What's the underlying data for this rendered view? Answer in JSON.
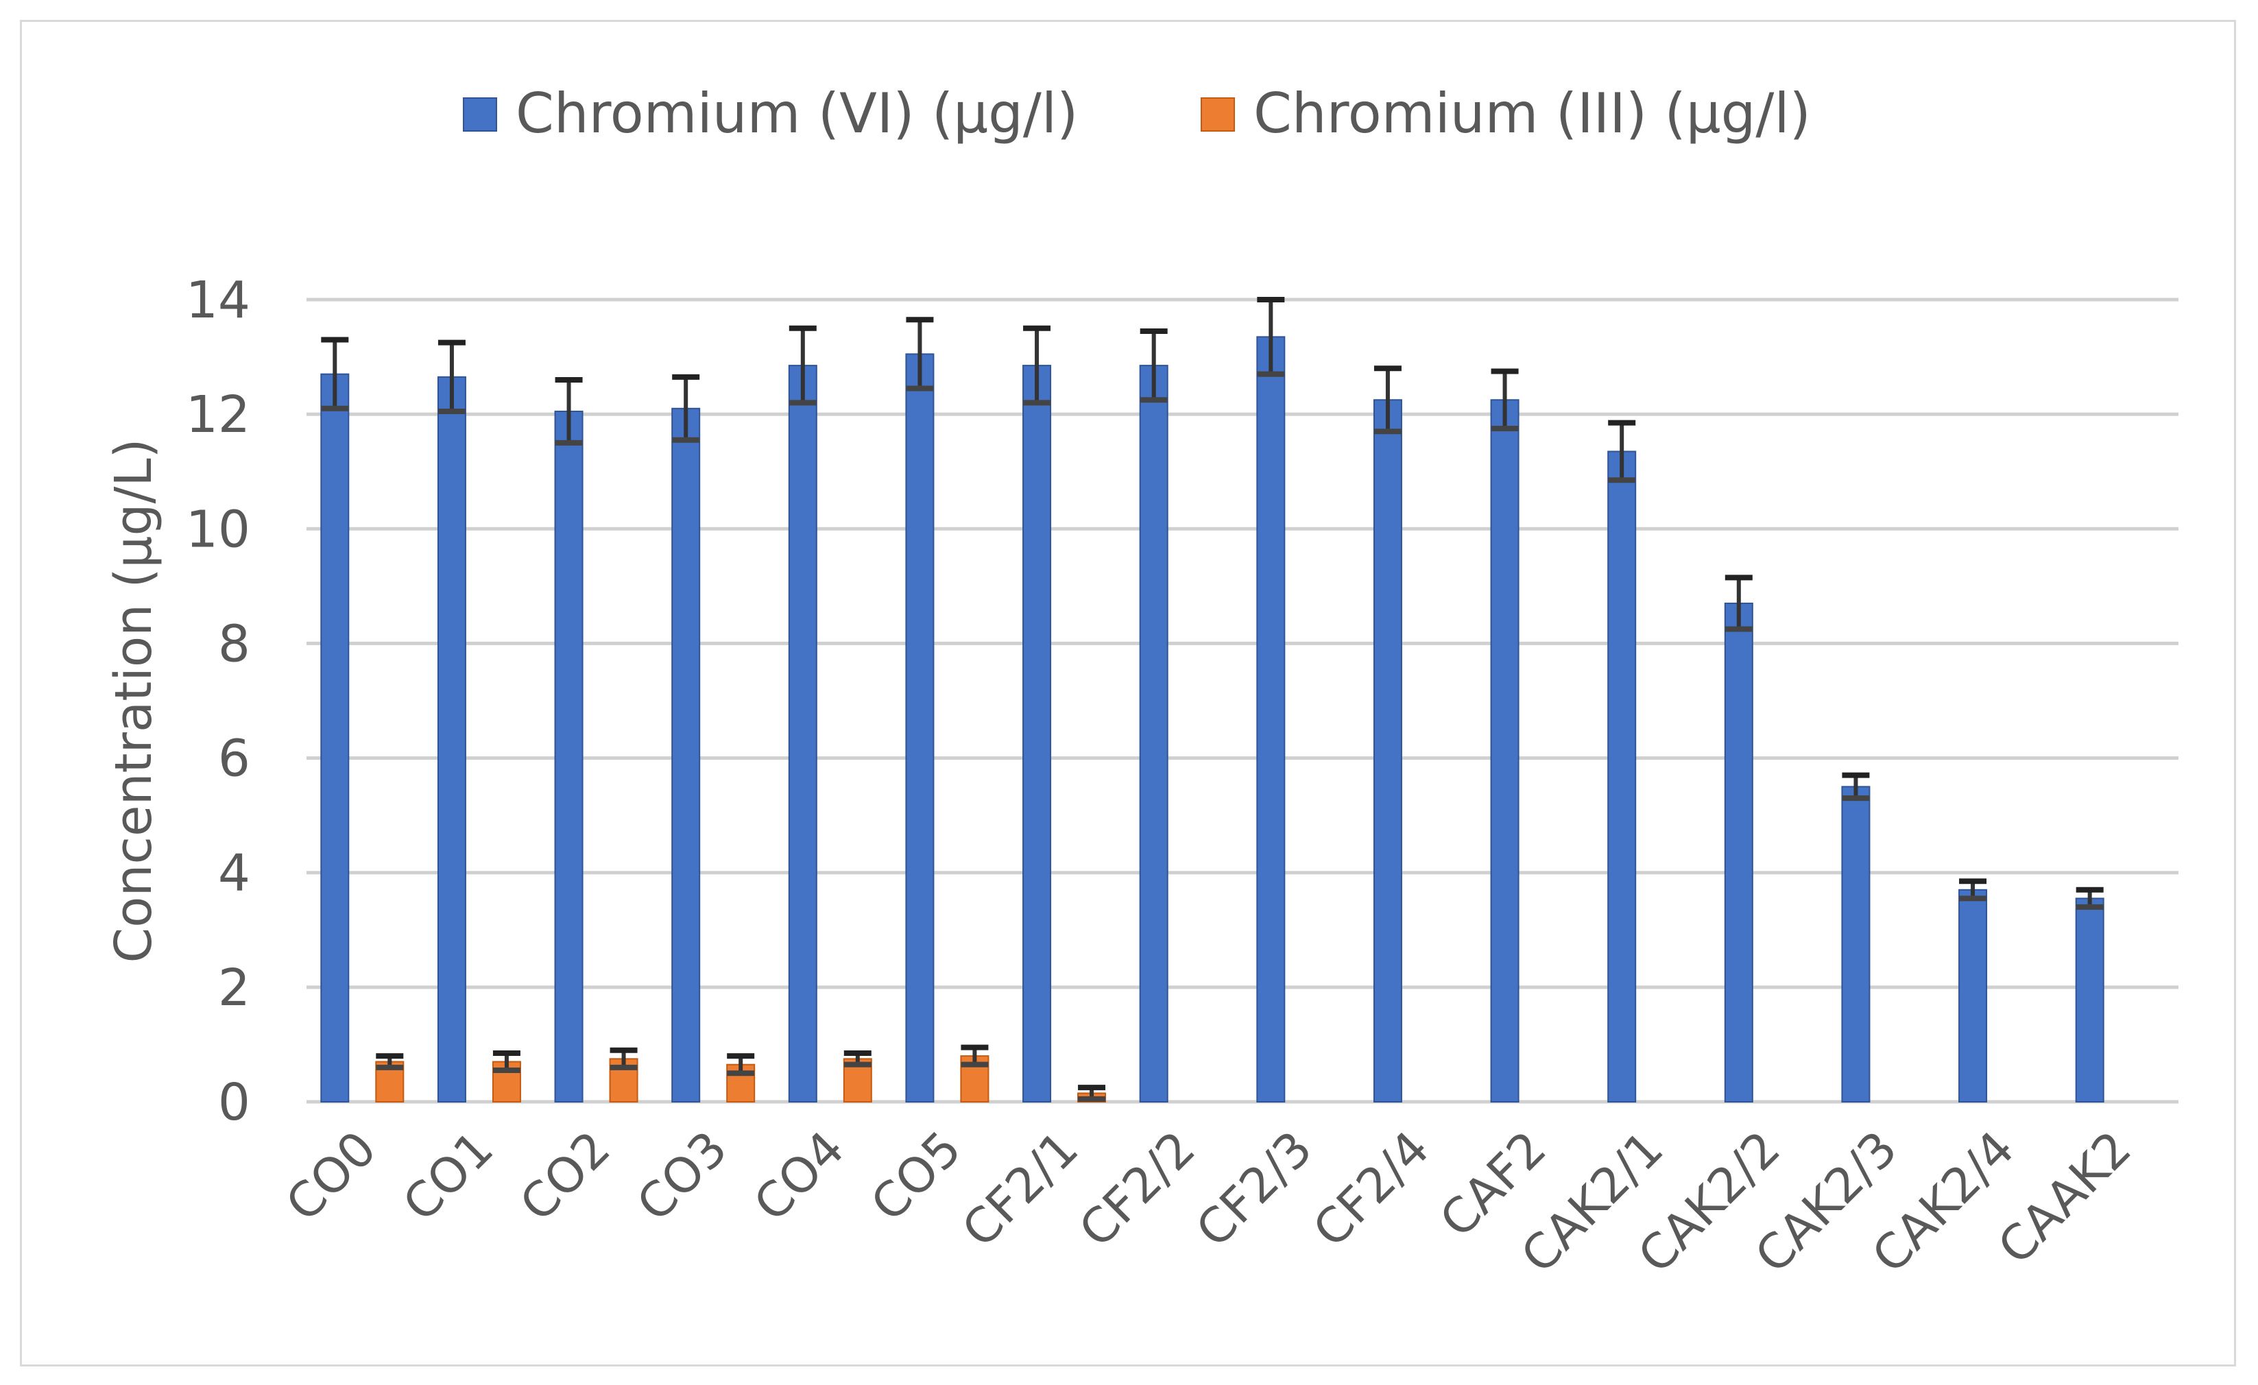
{
  "chart_data": {
    "type": "bar",
    "title": "",
    "xlabel": "",
    "ylabel": "Concentration  (µg/L)",
    "ylim": [
      0,
      14
    ],
    "yticks": [
      0,
      2,
      4,
      6,
      8,
      10,
      12,
      14
    ],
    "grid": true,
    "legend_position": "top",
    "categories": [
      "CO0",
      "CO1",
      "CO2",
      "CO3",
      "CO4",
      "CO5",
      "CF2/1",
      "CF2/2",
      "CF2/3",
      "CF2/4",
      "CAF2",
      "CAK2/1",
      "CAK2/2",
      "CAK2/3",
      "CAK2/4",
      "CAAK2"
    ],
    "series": [
      {
        "name": "Chromium (VI) (µg/l)",
        "color": "#4472c4",
        "values": [
          12.7,
          12.65,
          12.05,
          12.1,
          12.85,
          13.05,
          12.85,
          12.85,
          13.35,
          12.25,
          12.25,
          11.35,
          8.7,
          5.5,
          3.7,
          3.55
        ],
        "errors": [
          0.6,
          0.6,
          0.55,
          0.55,
          0.65,
          0.6,
          0.65,
          0.6,
          0.65,
          0.55,
          0.5,
          0.5,
          0.45,
          0.2,
          0.15,
          0.15
        ]
      },
      {
        "name": "Chromium (III) (µg/l)",
        "color": "#ed7d31",
        "values": [
          0.7,
          0.7,
          0.75,
          0.65,
          0.75,
          0.8,
          0.15,
          null,
          null,
          null,
          null,
          null,
          null,
          null,
          null,
          null
        ],
        "errors": [
          0.1,
          0.15,
          0.15,
          0.15,
          0.1,
          0.15,
          0.1,
          null,
          null,
          null,
          null,
          null,
          null,
          null,
          null,
          null
        ]
      }
    ]
  }
}
